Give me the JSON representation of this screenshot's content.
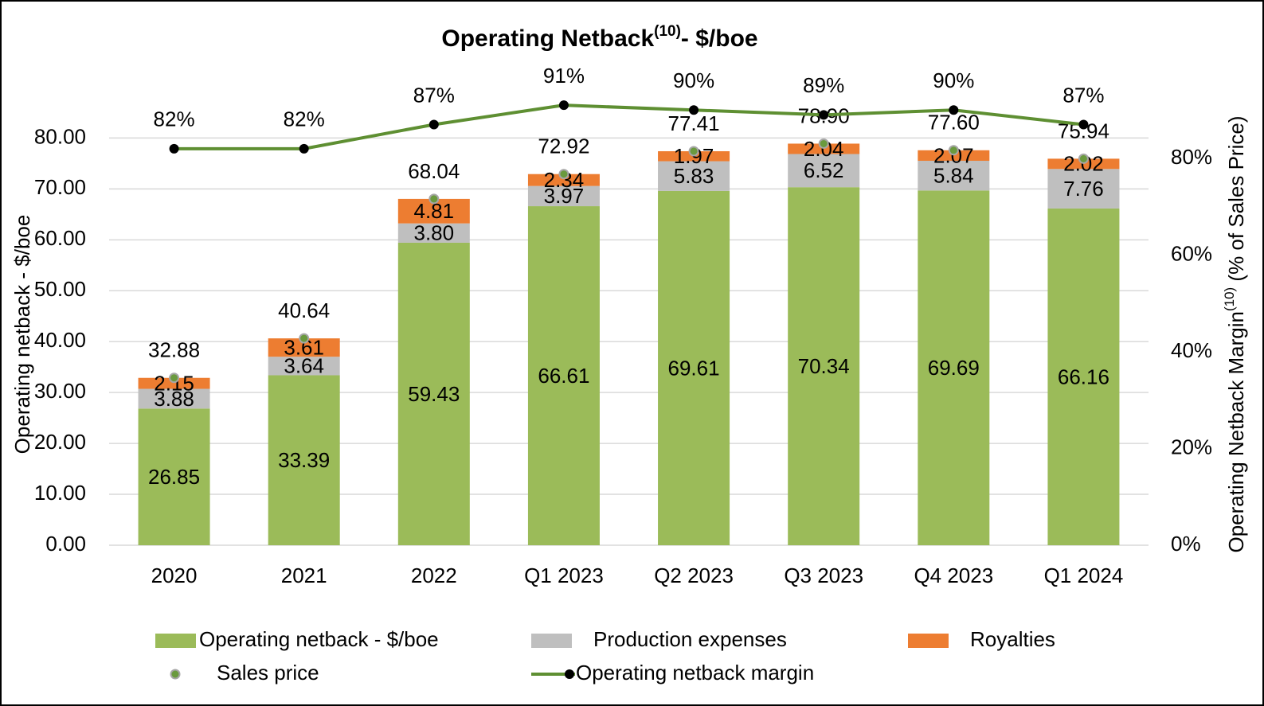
{
  "chart_data": {
    "type": "stacked-bar-line",
    "title": {
      "text": "Operating Netback",
      "superscript": "(10)",
      "suffix": "- $/boe"
    },
    "y_label": "Operating netback - $/boe",
    "y2_label": {
      "text": "Operating Netback Margin",
      "superscript": "(10)",
      "suffix": " (% of Sales Price)"
    },
    "categories": [
      "2020",
      "2021",
      "2022",
      "Q1 2023",
      "Q2 2023",
      "Q3 2023",
      "Q4 2023",
      "Q1 2024"
    ],
    "ylim": [
      0,
      95
    ],
    "yticks": [
      {
        "value": 0,
        "label": "0.00"
      },
      {
        "value": 10,
        "label": "10.00"
      },
      {
        "value": 20,
        "label": "20.00"
      },
      {
        "value": 30,
        "label": "30.00"
      },
      {
        "value": 40,
        "label": "40.00"
      },
      {
        "value": 50,
        "label": "50.00"
      },
      {
        "value": 60,
        "label": "60.00"
      },
      {
        "value": 70,
        "label": "70.00"
      },
      {
        "value": 80,
        "label": "80.00"
      }
    ],
    "y2lim": [
      0,
      100
    ],
    "y2ticks": [
      {
        "value": 0,
        "label": "0%"
      },
      {
        "value": 20,
        "label": "20%"
      },
      {
        "value": 40,
        "label": "40%"
      },
      {
        "value": 60,
        "label": "60%"
      },
      {
        "value": 80,
        "label": "80%"
      }
    ],
    "grid": true,
    "series": [
      {
        "name": "Operating netback - $/boe",
        "kind": "bar",
        "color": "#9bbb59",
        "values": [
          26.85,
          33.39,
          59.43,
          66.61,
          69.61,
          70.34,
          69.69,
          66.16
        ],
        "value_labels": [
          "26.85",
          "33.39",
          "59.43",
          "66.61",
          "69.61",
          "70.34",
          "69.69",
          "66.16"
        ]
      },
      {
        "name": "Production expenses",
        "kind": "bar",
        "color": "#bfbfbf",
        "values": [
          3.88,
          3.64,
          3.8,
          3.97,
          5.83,
          6.52,
          5.84,
          7.76
        ],
        "value_labels": [
          "3.88",
          "3.64",
          "3.80",
          "3.97",
          "5.83",
          "6.52",
          "5.84",
          "7.76"
        ]
      },
      {
        "name": "Royalties",
        "kind": "bar",
        "color": "#ed7d31",
        "values": [
          2.15,
          3.61,
          4.81,
          2.34,
          1.97,
          2.04,
          2.07,
          2.02
        ],
        "value_labels": [
          "2.15",
          "3.61",
          "4.81",
          "2.34",
          "1.97",
          "2.04",
          "2.07",
          "2.02"
        ]
      },
      {
        "name": "Sales price",
        "kind": "dot",
        "color": "#6a9a3e",
        "values": [
          32.88,
          40.64,
          68.04,
          72.92,
          77.41,
          78.9,
          77.6,
          75.94
        ],
        "value_labels": [
          "32.88",
          "40.64",
          "68.04",
          "72.92",
          "77.41",
          "78.90",
          "77.60",
          "75.94"
        ]
      },
      {
        "name": "Operating netback margin",
        "kind": "line",
        "axis": "y2",
        "color": "#5e8f32",
        "values": [
          82,
          82,
          87,
          91,
          90,
          89,
          90,
          87
        ],
        "value_labels": [
          "82%",
          "82%",
          "87%",
          "91%",
          "90%",
          "89%",
          "90%",
          "87%"
        ]
      }
    ]
  }
}
